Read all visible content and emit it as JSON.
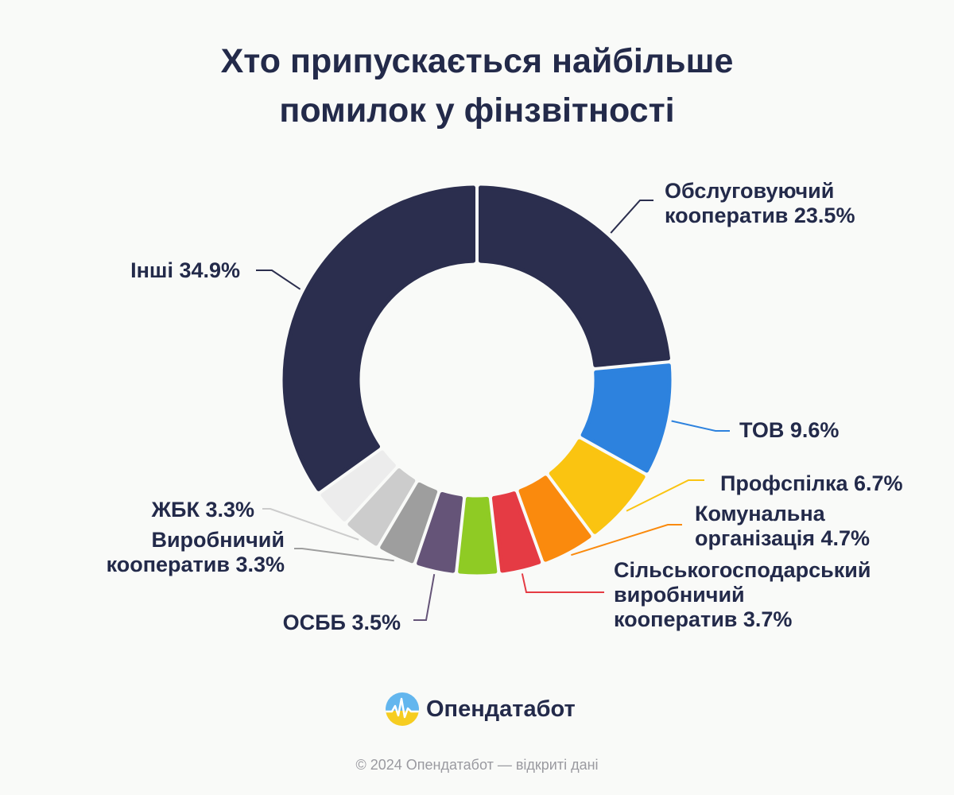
{
  "title": {
    "line1": "Хто припускається найбільше",
    "line2": "помилок у фінзвітності"
  },
  "chart_data": {
    "type": "pie",
    "donut": true,
    "legend": "none",
    "categories": [
      "Обслуговуючий кооператив",
      "ТОВ",
      "Профспілка",
      "Комунальна організація",
      "Сільськогосподарський виробничий кооператив",
      "",
      "ОСББ",
      "Виробничий кооператив",
      "ЖБК",
      "Інші"
    ],
    "values": [
      23.5,
      9.6,
      6.7,
      4.7,
      3.7,
      3.5,
      3.5,
      3.3,
      3.3,
      34.9
    ],
    "colors": [
      "#2b2e4e",
      "#2d82de",
      "#fac411",
      "#fa8a0d",
      "#e53b44",
      "#8fcb24",
      "#655478",
      "#9e9e9e",
      "#cccccc",
      "#2b2e4e"
    ],
    "extra_slice_color": "#ececec",
    "labels": {
      "obsl": {
        "line1": "Обслуговуючий",
        "line2": "кооператив 23.5%"
      },
      "tov": "ТОВ 9.6%",
      "prof": "Профспілка 6.7%",
      "komun": {
        "line1": "Комунальна",
        "line2": "організація 4.7%"
      },
      "silsk": {
        "line1": "Сільськогосподарський",
        "line2": "виробничий",
        "line3": "кооператив 3.7%"
      },
      "osbb": "ОСББ 3.5%",
      "vyrob": {
        "line1": "Виробничий",
        "line2": "кооператив 3.3%"
      },
      "zhbk": "ЖБК 3.3%",
      "inshi": "Інші 34.9%"
    }
  },
  "brand": {
    "name": "Опендатабот"
  },
  "footer": "© 2024 Опендатабот — відкриті дані"
}
